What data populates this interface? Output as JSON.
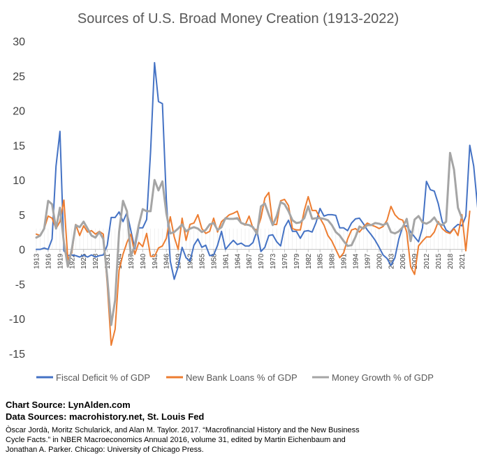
{
  "chart_data": {
    "type": "line",
    "title": "Sources of U.S. Broad Money Creation (1913-2022)",
    "ylim": [
      -15,
      30
    ],
    "yticks": [
      -15,
      -10,
      -5,
      0,
      5,
      10,
      15,
      20,
      25,
      30
    ],
    "x_start": 1913,
    "x_end": 2022,
    "xtick_step": 3,
    "xtick_labels": [
      "1913",
      "1916",
      "1919",
      "1922",
      "1925",
      "1928",
      "1931",
      "1934",
      "1937",
      "1940",
      "1943",
      "1946",
      "1949",
      "1952",
      "1955",
      "1958",
      "1961",
      "1964",
      "1967",
      "1970",
      "1973",
      "1976",
      "1979",
      "1982",
      "1985",
      "1988",
      "1991",
      "1994",
      "1997",
      "2000",
      "2003",
      "2006",
      "2009",
      "2012",
      "2015",
      "2018",
      "2021"
    ],
    "series": [
      {
        "name": "Fiscal Deficit % of GDP",
        "color": "#4472C4",
        "values": [
          0,
          0,
          0.2,
          0,
          1.5,
          12,
          17,
          -0.2,
          -0.9,
          -0.8,
          -0.9,
          -1.1,
          -0.8,
          -1.1,
          -0.8,
          -1.1,
          -0.9,
          -0.8,
          0.6,
          4.6,
          4.6,
          5.4,
          4,
          5.3,
          2.7,
          0.1,
          3.1,
          3.1,
          4.3,
          14.1,
          26.9,
          21.3,
          21,
          7.1,
          -1.7,
          -4.3,
          -2.5,
          0.3,
          -1.2,
          -1.7,
          0.6,
          1.5,
          0.3,
          0.6,
          -0.9,
          -0.8,
          0.6,
          2.6,
          0,
          0.7,
          1.3,
          0.7,
          0.9,
          0.5,
          0.5,
          1,
          2.7,
          -0.3,
          0.3,
          2,
          2.1,
          1.1,
          0.5,
          3.2,
          4.2,
          2.6,
          2.6,
          1.6,
          2.6,
          2.7,
          2.5,
          3.9,
          5.9,
          4.8,
          5,
          5,
          4.9,
          3.1,
          3.1,
          2.7,
          3.8,
          4.4,
          4.5,
          3.7,
          2.8,
          2.1,
          1.3,
          0.3,
          -0.8,
          -1.3,
          -2.3,
          -1.2,
          1.5,
          3.3,
          3.4,
          2.5,
          1.8,
          1.1,
          3.1,
          9.8,
          8.6,
          8.4,
          6.6,
          4,
          2.8,
          2.4,
          3.1,
          3.6,
          3.4,
          4.8,
          15,
          12,
          6,
          5
        ]
      },
      {
        "name": "New Bank Loans % of GDP",
        "color": "#ED7D31",
        "values": [
          2.2,
          2,
          3,
          4.8,
          4.5,
          3,
          4,
          7.1,
          -1.5,
          -0.5,
          3.6,
          2,
          3.4,
          2.5,
          2.7,
          2.2,
          2.6,
          2.2,
          -5,
          -13.8,
          -11.5,
          -3,
          -0.7,
          1,
          2.2,
          -0.7,
          1,
          0.4,
          2.3,
          -1,
          -1,
          0.2,
          0.5,
          1.6,
          4.7,
          1.8,
          0,
          4.5,
          1.3,
          3.6,
          3.8,
          5,
          3,
          2.3,
          2.6,
          4.5,
          2.5,
          4,
          4.5,
          5,
          5.2,
          5.5,
          3.8,
          3.5,
          4.8,
          3,
          2.8,
          4.5,
          7.4,
          8.2,
          3.6,
          3.6,
          7,
          7.2,
          6.3,
          3,
          2.8,
          2.8,
          5.6,
          7.6,
          5.6,
          5.6,
          4.5,
          3.5,
          2,
          1.2,
          0,
          -1.2,
          -0.5,
          1.5,
          2.8,
          3,
          2.5,
          3.2,
          3.8,
          3.5,
          3.3,
          3,
          3.3,
          4.2,
          6.2,
          5,
          4.4,
          4.2,
          2.5,
          -2.5,
          -3.6,
          0.5,
          1.2,
          1.8,
          1.8,
          2.5,
          4,
          3,
          2.5,
          2.3,
          3,
          2,
          5,
          -0.2,
          5.5
        ]
      },
      {
        "name": "Money Growth % of GDP",
        "color": "#A5A5A5",
        "values": [
          1.7,
          2,
          3,
          7,
          6.5,
          3,
          6,
          1,
          -2.5,
          0,
          3.5,
          3.2,
          4,
          3,
          2,
          1.7,
          2.5,
          1.5,
          -4,
          -10.9,
          -7.3,
          2.5,
          7,
          5.5,
          -1,
          0.6,
          3.5,
          5.8,
          5.5,
          5.5,
          10,
          8.5,
          9.8,
          5.2,
          2.3,
          2.5,
          3,
          3.6,
          2.6,
          3,
          3.2,
          3,
          2.5,
          2.8,
          3.6,
          3.8,
          2.8,
          3.2,
          4.5,
          4.4,
          4.4,
          4.5,
          3.8,
          3.6,
          3.5,
          3.2,
          2.2,
          6.2,
          6.6,
          5,
          3.5,
          4.8,
          6.8,
          6.5,
          5.5,
          4.2,
          3.8,
          3.9,
          4.5,
          6.2,
          4.4,
          4.5,
          4.5,
          4.4,
          4.2,
          3.5,
          2.5,
          2,
          1.2,
          0.5,
          0.6,
          1.8,
          3.3,
          3,
          3.5,
          3.5,
          3.8,
          3.7,
          3.5,
          3.8,
          2.5,
          2.3,
          2.6,
          3.2,
          4.4,
          1.2,
          4.3,
          4.8,
          3.9,
          3.7,
          4,
          4.6,
          3.7,
          3.5,
          4,
          13.9,
          11.5,
          6,
          4.5
        ]
      }
    ]
  },
  "credits": {
    "chart_source": "Chart Source: LynAlden.com",
    "data_sources": "Data Sources: macrohistory.net, St. Louis Fed",
    "citation": "Òscar Jordà, Moritz Schularick, and Alan M. Taylor. 2017. “Macrofinancial History and the New Business Cycle Facts.” in NBER Macroeconomics Annual 2016, volume 31, edited by Martin Eichenbaum and Jonathan A. Parker. Chicago: University of Chicago Press."
  }
}
